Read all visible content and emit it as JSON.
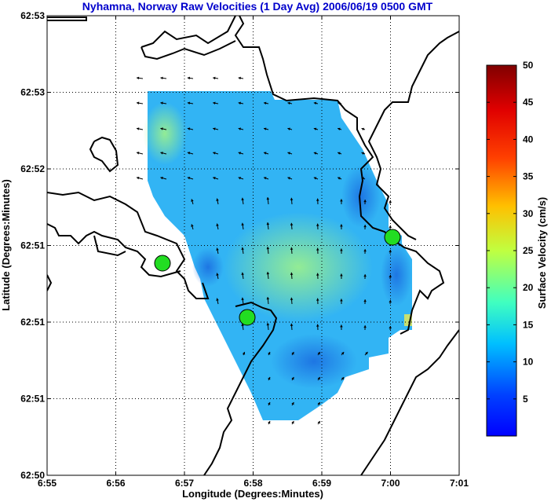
{
  "chart_data": {
    "type": "heatmap",
    "title": "Nyhamna, Norway Raw Velocities (1 Day Avg) 2006/06/19 0500 GMT",
    "xlabel": "Longitude (Degrees:Minutes)",
    "ylabel": "Latitude (Degrees:Minutes)",
    "x_tick_labels": [
      "6:55",
      "6:56",
      "6:57",
      "6:58",
      "6:59",
      "7:00",
      "7:01"
    ],
    "y_tick_labels": [
      "62:50",
      "62:51",
      "62:51",
      "62:51",
      "62:52",
      "62:53",
      "62:53"
    ],
    "grid": true,
    "colorbar": {
      "label": "Surface Velocity (cm/s)",
      "ticks": [
        5,
        10,
        15,
        20,
        25,
        30,
        35,
        40,
        45,
        50
      ],
      "range": [
        0,
        50
      ],
      "colormap": "jet"
    },
    "stations": [
      {
        "lon_min": 6.95,
        "lat_min": 62.849
      },
      {
        "lon_min": 6.979,
        "lat_min": 62.845
      },
      {
        "lon_min": 7.0,
        "lat_min": 62.857
      }
    ],
    "colors": {
      "station_fill": "#22dd22",
      "title_color": "#0000cc",
      "coast": "#000000"
    }
  }
}
